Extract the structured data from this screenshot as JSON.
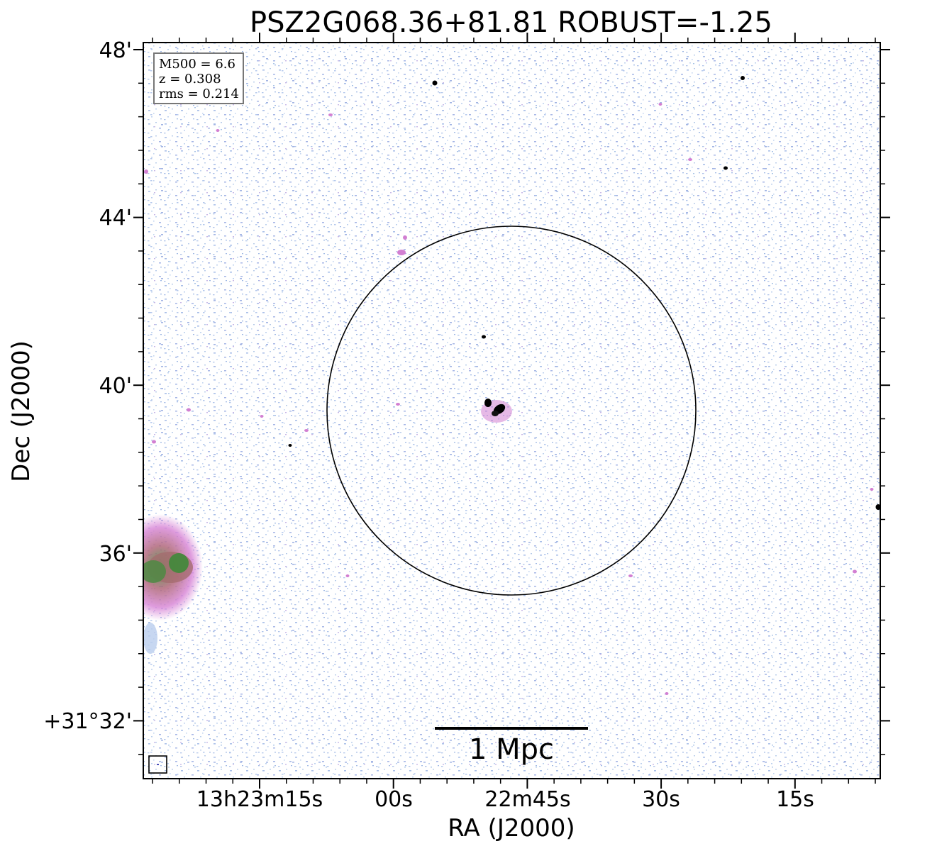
{
  "title": "PSZ2G068.36+81.81 ROBUST=-1.25",
  "axes": {
    "xlabel": "RA (J2000)",
    "ylabel": "Dec (J2000)",
    "yticks": [
      "48'",
      "44'",
      "40'",
      "36'",
      "+31°32'"
    ],
    "xticks": [
      "13h23m15s",
      "00s",
      "22m45s",
      "30s",
      "15s"
    ]
  },
  "info": {
    "mass": "M500 = 6.6",
    "redshift": "z = 0.308",
    "rms": "rms = 0.214"
  },
  "scalebar": {
    "label": "1 Mpc"
  },
  "colors": {
    "noise_blue": "#a9bfe8",
    "emission_pink": "#d27fd2",
    "emission_green": "#3f8a3a",
    "source_black": "#000000"
  }
}
